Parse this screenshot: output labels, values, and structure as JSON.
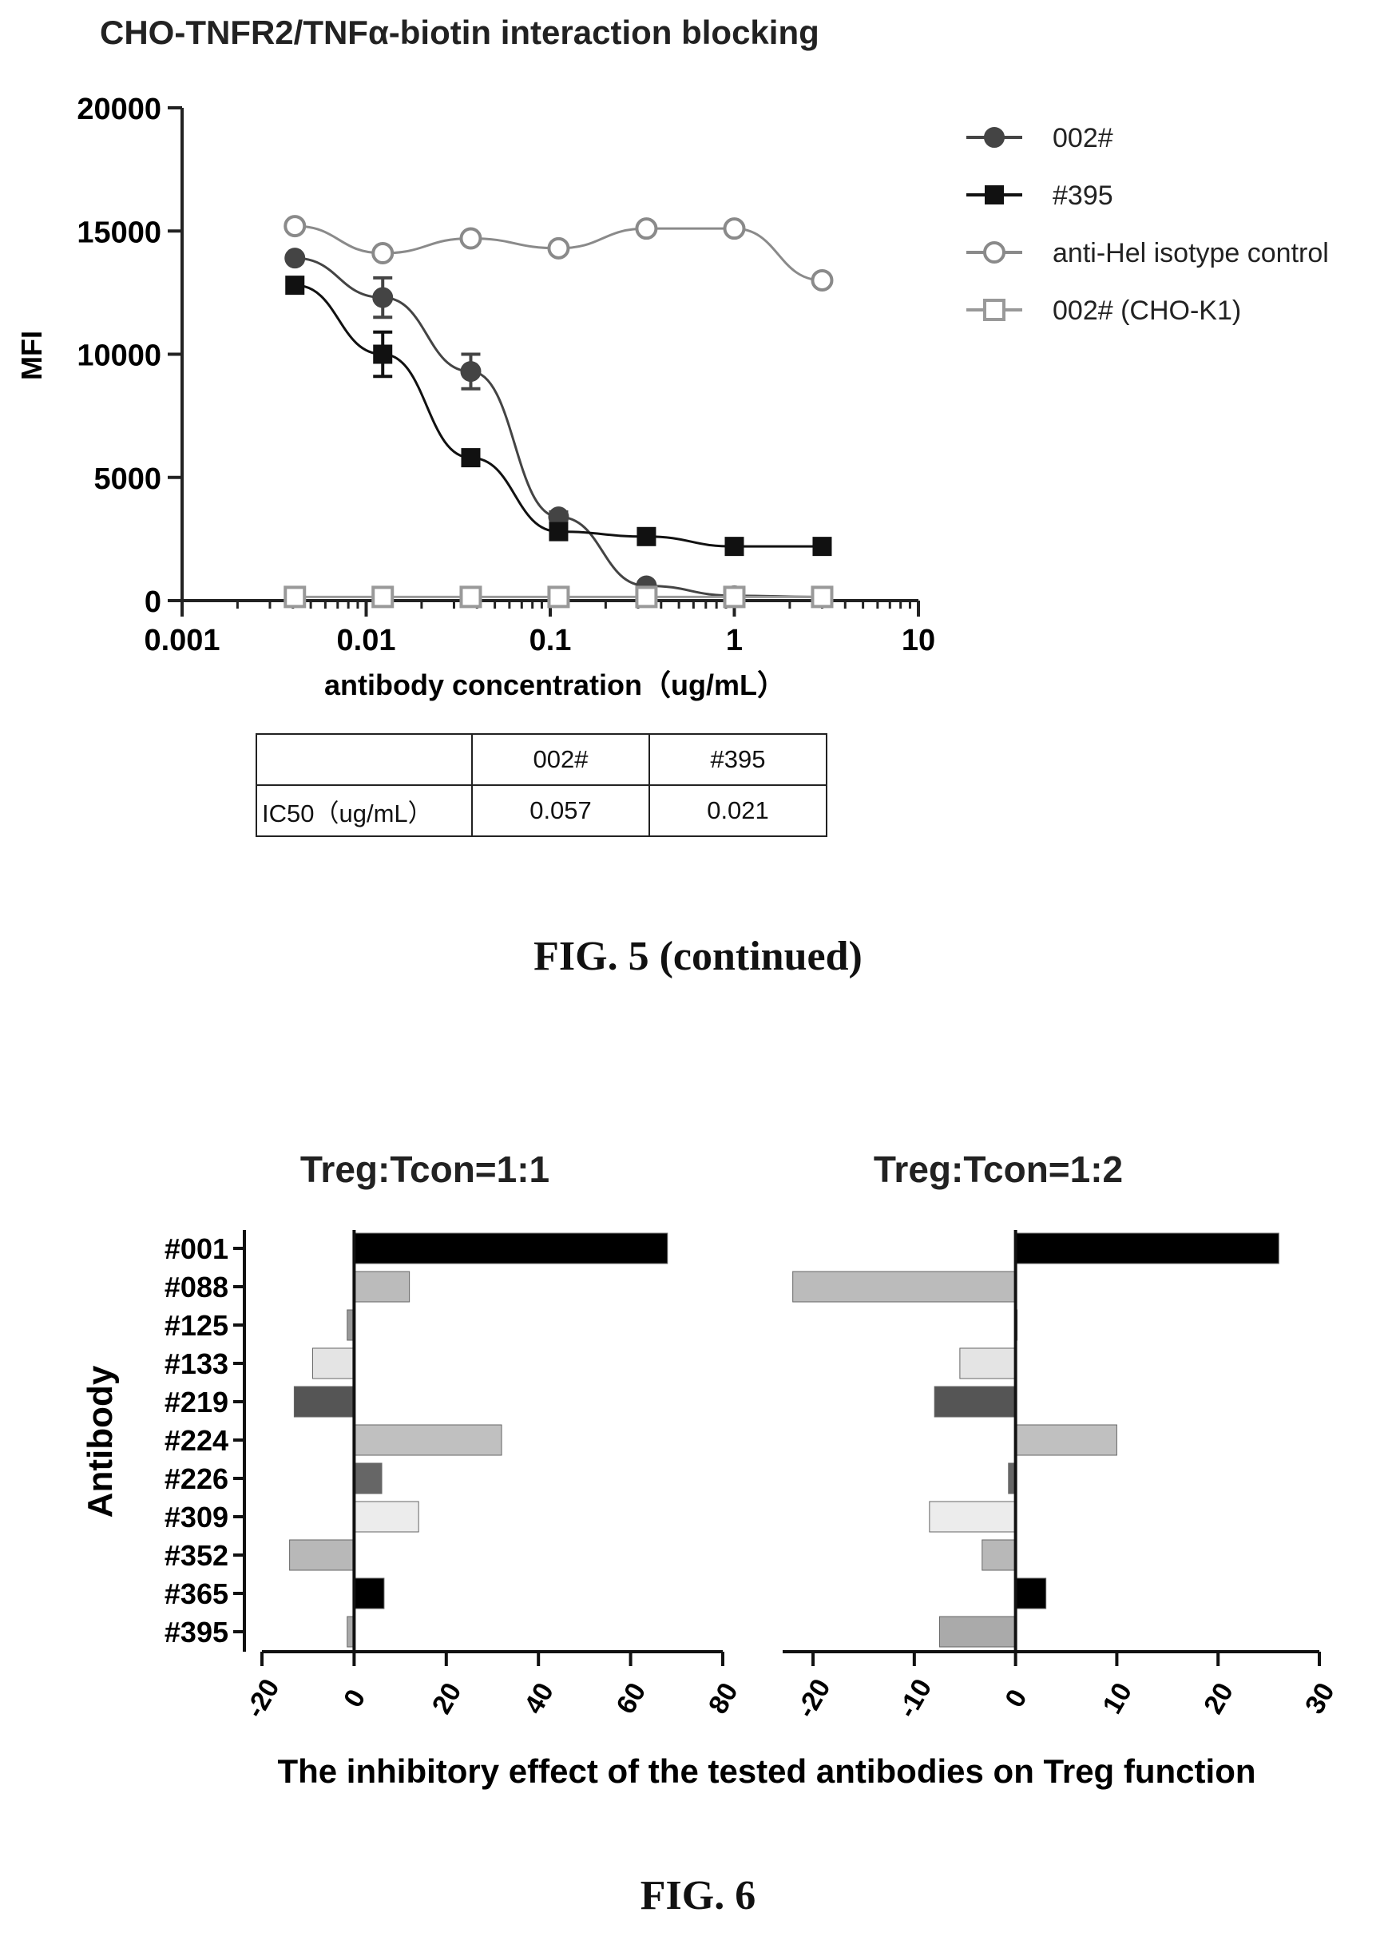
{
  "fig5": {
    "caption": "FIG. 5 (continued)",
    "chart_data": {
      "type": "line",
      "title": "CHO-TNFR2/TNFα-biotin interaction blocking",
      "xlabel": "antibody concentration（ug/mL）",
      "ylabel": "MFI",
      "x_scale": "log",
      "xlim": [
        0.001,
        10
      ],
      "ylim": [
        0,
        20000
      ],
      "x_ticks": [
        "0.001",
        "0.01",
        "0.1",
        "1",
        "10"
      ],
      "y_ticks": [
        "0",
        "5000",
        "10000",
        "15000",
        "20000"
      ],
      "x": [
        0.0041,
        0.0123,
        0.037,
        0.111,
        0.333,
        1,
        3
      ],
      "legend_position": "right",
      "series": [
        {
          "name": "002#",
          "marker": "filled-circle",
          "color": "#444444",
          "values": [
            13900,
            12300,
            9300,
            3400,
            600,
            200,
            150
          ],
          "errors": [
            0,
            800,
            700,
            200,
            0,
            0,
            0
          ]
        },
        {
          "name": "#395",
          "marker": "filled-square",
          "color": "#111111",
          "values": [
            12800,
            10000,
            5800,
            2800,
            2600,
            2200,
            2200
          ],
          "errors": [
            0,
            900,
            0,
            0,
            0,
            0,
            0
          ]
        },
        {
          "name": "anti-Hel isotype control",
          "marker": "open-circle",
          "color": "#8a8a8a",
          "values": [
            15200,
            14100,
            14700,
            14300,
            15100,
            15100,
            13000
          ],
          "errors": [
            0,
            0,
            0,
            0,
            0,
            0,
            0
          ]
        },
        {
          "name": "002# (CHO-K1)",
          "marker": "open-square",
          "color": "#999999",
          "values": [
            150,
            150,
            150,
            150,
            150,
            150,
            150
          ],
          "errors": [
            0,
            0,
            0,
            0,
            0,
            0,
            0
          ]
        }
      ]
    },
    "table": {
      "header": [
        "",
        "002#",
        "#395"
      ],
      "row_label": "IC50（ug/mL）",
      "row_values": [
        "0.057",
        "0.021"
      ]
    }
  },
  "fig6": {
    "caption": "FIG. 6",
    "chart_data": [
      {
        "type": "bar",
        "orientation": "horizontal",
        "title": "Treg:Tcon=1:1",
        "ylabel": "Antibody",
        "xlim": [
          -20,
          80
        ],
        "x_ticks": [
          "-20",
          "0",
          "20",
          "40",
          "60",
          "80"
        ],
        "categories": [
          "#001",
          "#088",
          "#125",
          "#133",
          "#219",
          "#224",
          "#226",
          "#309",
          "#352",
          "#365",
          "#395"
        ],
        "values": [
          68,
          12,
          -1.5,
          -9,
          -13,
          32,
          6,
          14,
          -14,
          6.5,
          -1.5
        ],
        "colors": [
          "#000000",
          "#bbbbbb",
          "#999999",
          "#e4e4e4",
          "#555555",
          "#c0c0c0",
          "#666666",
          "#ececec",
          "#b8b8b8",
          "#000000",
          "#aaaaaa"
        ]
      },
      {
        "type": "bar",
        "orientation": "horizontal",
        "title": "Treg:Tcon=1:2",
        "xlim": [
          -23,
          30
        ],
        "x_ticks": [
          "-20",
          "-10",
          "0",
          "10",
          "20",
          "30"
        ],
        "categories": [
          "#001",
          "#088",
          "#125",
          "#133",
          "#219",
          "#224",
          "#226",
          "#309",
          "#352",
          "#365",
          "#395"
        ],
        "values": [
          26,
          -22,
          0,
          -5.5,
          -8,
          10,
          -0.7,
          -8.5,
          -3.3,
          3,
          -7.5
        ],
        "colors": [
          "#000000",
          "#bbbbbb",
          "#999999",
          "#e4e4e4",
          "#555555",
          "#c0c0c0",
          "#666666",
          "#ececec",
          "#b8b8b8",
          "#000000",
          "#aaaaaa"
        ]
      }
    ],
    "shared_xlabel": "The inhibitory effect of the tested antibodies on Treg function"
  }
}
